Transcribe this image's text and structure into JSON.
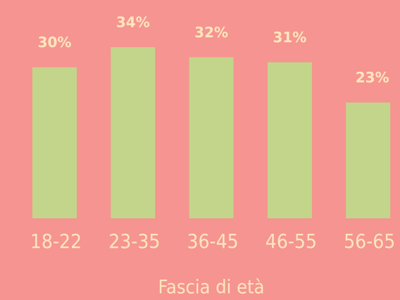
{
  "chart_data": {
    "type": "bar",
    "x_label": "Fascia di età",
    "categories": [
      "18-22",
      "23-35",
      "36-45",
      "46-55",
      "56-65"
    ],
    "values": [
      30,
      34,
      32,
      31,
      23
    ],
    "value_labels": [
      "30%",
      "34%",
      "32%",
      "31%",
      "23%"
    ],
    "color": "#c3d58a"
  }
}
